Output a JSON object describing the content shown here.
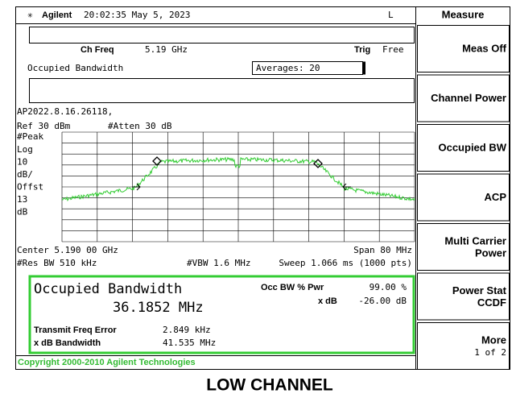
{
  "header": {
    "brand": "Agilent",
    "datetime": "20:02:35  May 5, 2023",
    "mode": "L"
  },
  "settings": {
    "ch_freq_label": "Ch Freq",
    "ch_freq": "5.19 GHz",
    "trig_label": "Trig",
    "trig": "Free",
    "measurement": "Occupied Bandwidth",
    "averages": "Averages: 20",
    "version": "AP2022.8.16.26118,",
    "ref": "Ref 30 dBm",
    "atten": "#Atten 30 dB"
  },
  "scale": {
    "detector": "#Peak",
    "lines": [
      "Log",
      "10",
      "dB/",
      "Offst",
      "13",
      "dB"
    ]
  },
  "footer": {
    "center": "Center 5.190 00 GHz",
    "span": "Span 80 MHz",
    "res_bw": "#Res BW 510 kHz",
    "vbw": "#VBW 1.6 MHz",
    "sweep": "Sweep 1.066 ms (1000 pts)"
  },
  "result": {
    "title": "Occupied Bandwidth",
    "value": "36.1852 MHz",
    "pwr_label": "Occ BW % Pwr",
    "pwr": "99.00 %",
    "xdb_label": "x dB",
    "xdb": "-26.00 dB",
    "tfe_label": "Transmit Freq Error",
    "tfe": "2.849 kHz",
    "xbw_label": "x dB Bandwidth",
    "xbw": "41.535 MHz"
  },
  "copyright": "Copyright 2000-2010 Agilent Technologies",
  "caption": "LOW CHANNEL",
  "menu": {
    "title": "Measure",
    "keys": [
      [
        "Meas Off"
      ],
      [
        "Channel Power"
      ],
      [
        "Occupied BW"
      ],
      [
        "ACP"
      ],
      [
        "Multi Carrier",
        "Power"
      ],
      [
        "Power Stat",
        "CCDF"
      ],
      [
        "More",
        "1 of 2"
      ]
    ]
  }
}
